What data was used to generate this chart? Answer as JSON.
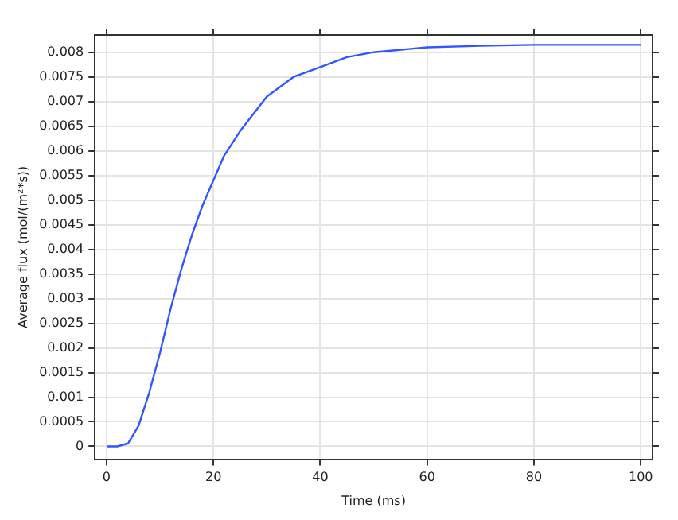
{
  "chart_data": {
    "type": "line",
    "xlabel": "Time (ms)",
    "ylabel": "Average flux (mol/(m²*s))",
    "x": [
      0,
      2,
      4,
      6,
      8,
      10,
      12,
      14,
      16,
      18,
      20,
      22,
      25,
      30,
      35,
      40,
      45,
      50,
      60,
      70,
      80,
      90,
      100
    ],
    "series": [
      {
        "color": "#3355ff",
        "values": [
          0,
          0,
          6e-05,
          0.00042,
          0.0011,
          0.0019,
          0.0028,
          0.0036,
          0.0043,
          0.0049,
          0.0054,
          0.0059,
          0.0064,
          0.0071,
          0.0075,
          0.0077,
          0.0079,
          0.008,
          0.0081,
          0.00813,
          0.00815,
          0.00815,
          0.00815
        ]
      }
    ],
    "xlim": [
      -2.2,
      102.2
    ],
    "xticks": [
      0,
      20,
      40,
      60,
      80,
      100
    ],
    "ylim": [
      -0.00026,
      0.00835
    ],
    "yticks": [
      0,
      0.0005,
      0.001,
      0.0015,
      0.002,
      0.0025,
      0.003,
      0.0035,
      0.004,
      0.0045,
      0.005,
      0.0055,
      0.006,
      0.0065,
      0.007,
      0.0075,
      0.008
    ],
    "grid": true,
    "legend": false,
    "marker": "none",
    "line_style": "solid"
  }
}
